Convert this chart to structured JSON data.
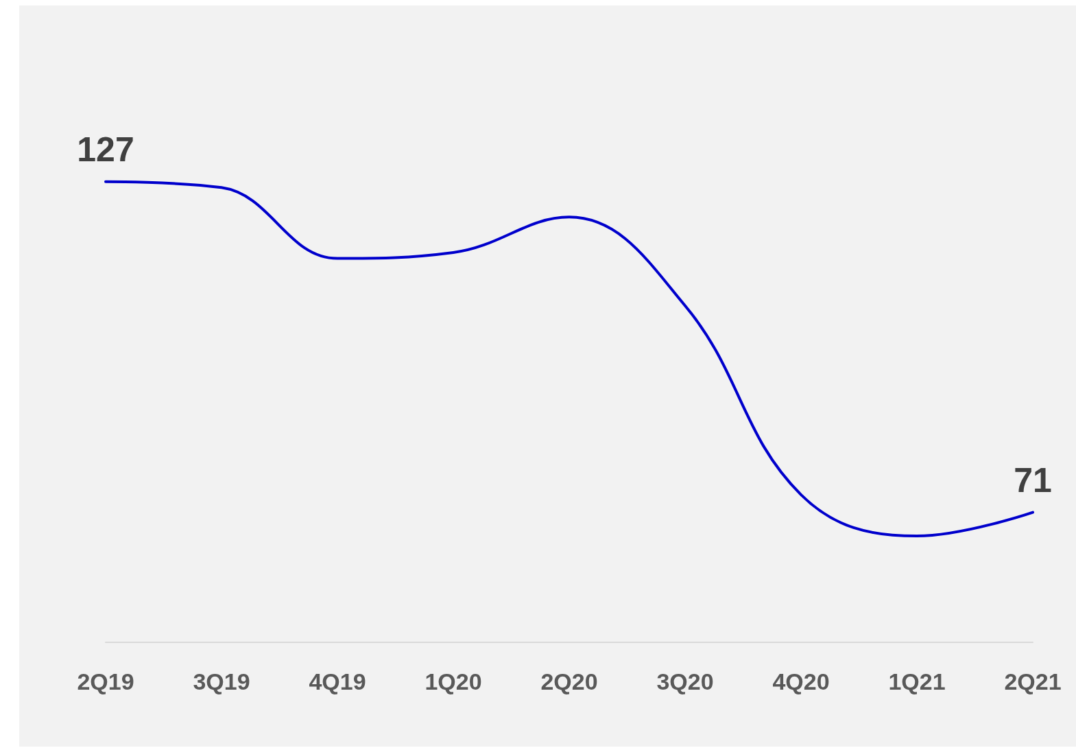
{
  "chart_data": {
    "type": "line",
    "categories": [
      "2Q19",
      "3Q19",
      "4Q19",
      "1Q20",
      "2Q20",
      "3Q20",
      "4Q20",
      "1Q21",
      "2Q21"
    ],
    "values": [
      127,
      126,
      114,
      115,
      121,
      106,
      74,
      67,
      71
    ],
    "value_labels": [
      "127",
      null,
      null,
      null,
      null,
      null,
      null,
      null,
      "71"
    ],
    "color": "#0000cc",
    "marker": "none"
  }
}
